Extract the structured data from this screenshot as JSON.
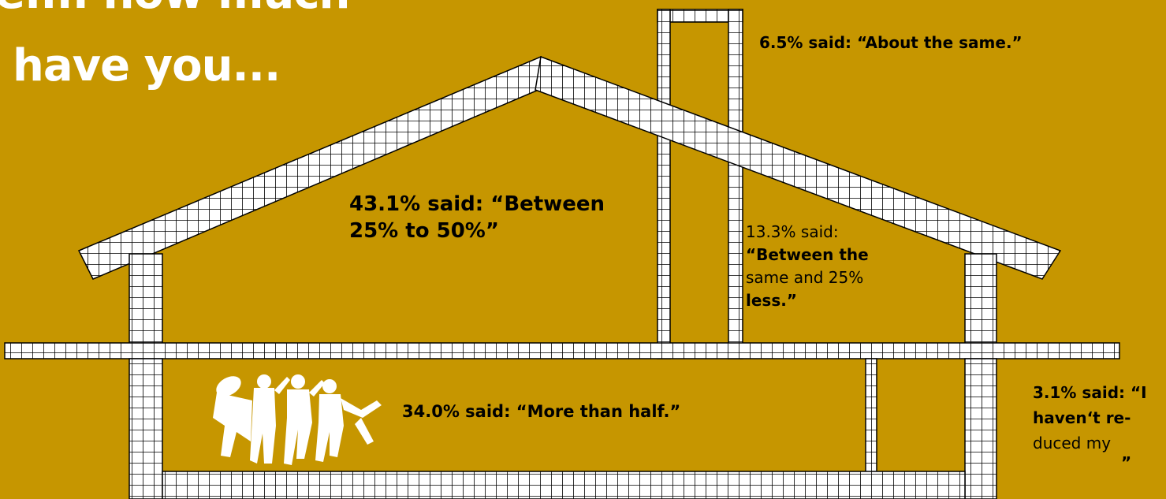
{
  "colors": {
    "background": "#C69600",
    "grid_stroke": "#000000",
    "grid_fill": "#FFFFFF",
    "title": "#FFFFFF",
    "text": "#000000"
  },
  "title": {
    "line1": "e.... how much",
    "line2": "have you..."
  },
  "chart_data": {
    "type": "infographic",
    "categories": [
      "About the same.",
      "Between 25% to 50%",
      "Between the same and 25% less.",
      "More than half.",
      "I haven't reduced my ..."
    ],
    "values": [
      6.5,
      43.1,
      13.3,
      34.0,
      3.1
    ],
    "unit": "%"
  },
  "labels": {
    "about_same": "6.5% said: “About the same.”",
    "between_25_50": {
      "line1": "43.1% said: “Between",
      "line2": "25% to 50%”"
    },
    "same_25_less": {
      "line1": "13.3% said:",
      "line2": "“Between the",
      "line3": "same and 25%",
      "line4": "less.”"
    },
    "more_than_half": "34.0% said: “More than half.”",
    "havent_reduced": {
      "line1": "3.1% said: “I",
      "line2": "haven‘t re-",
      "line3": "duced my",
      "line4": "”"
    }
  },
  "icons": {
    "people": "jumping-people-silhouette-icon"
  }
}
